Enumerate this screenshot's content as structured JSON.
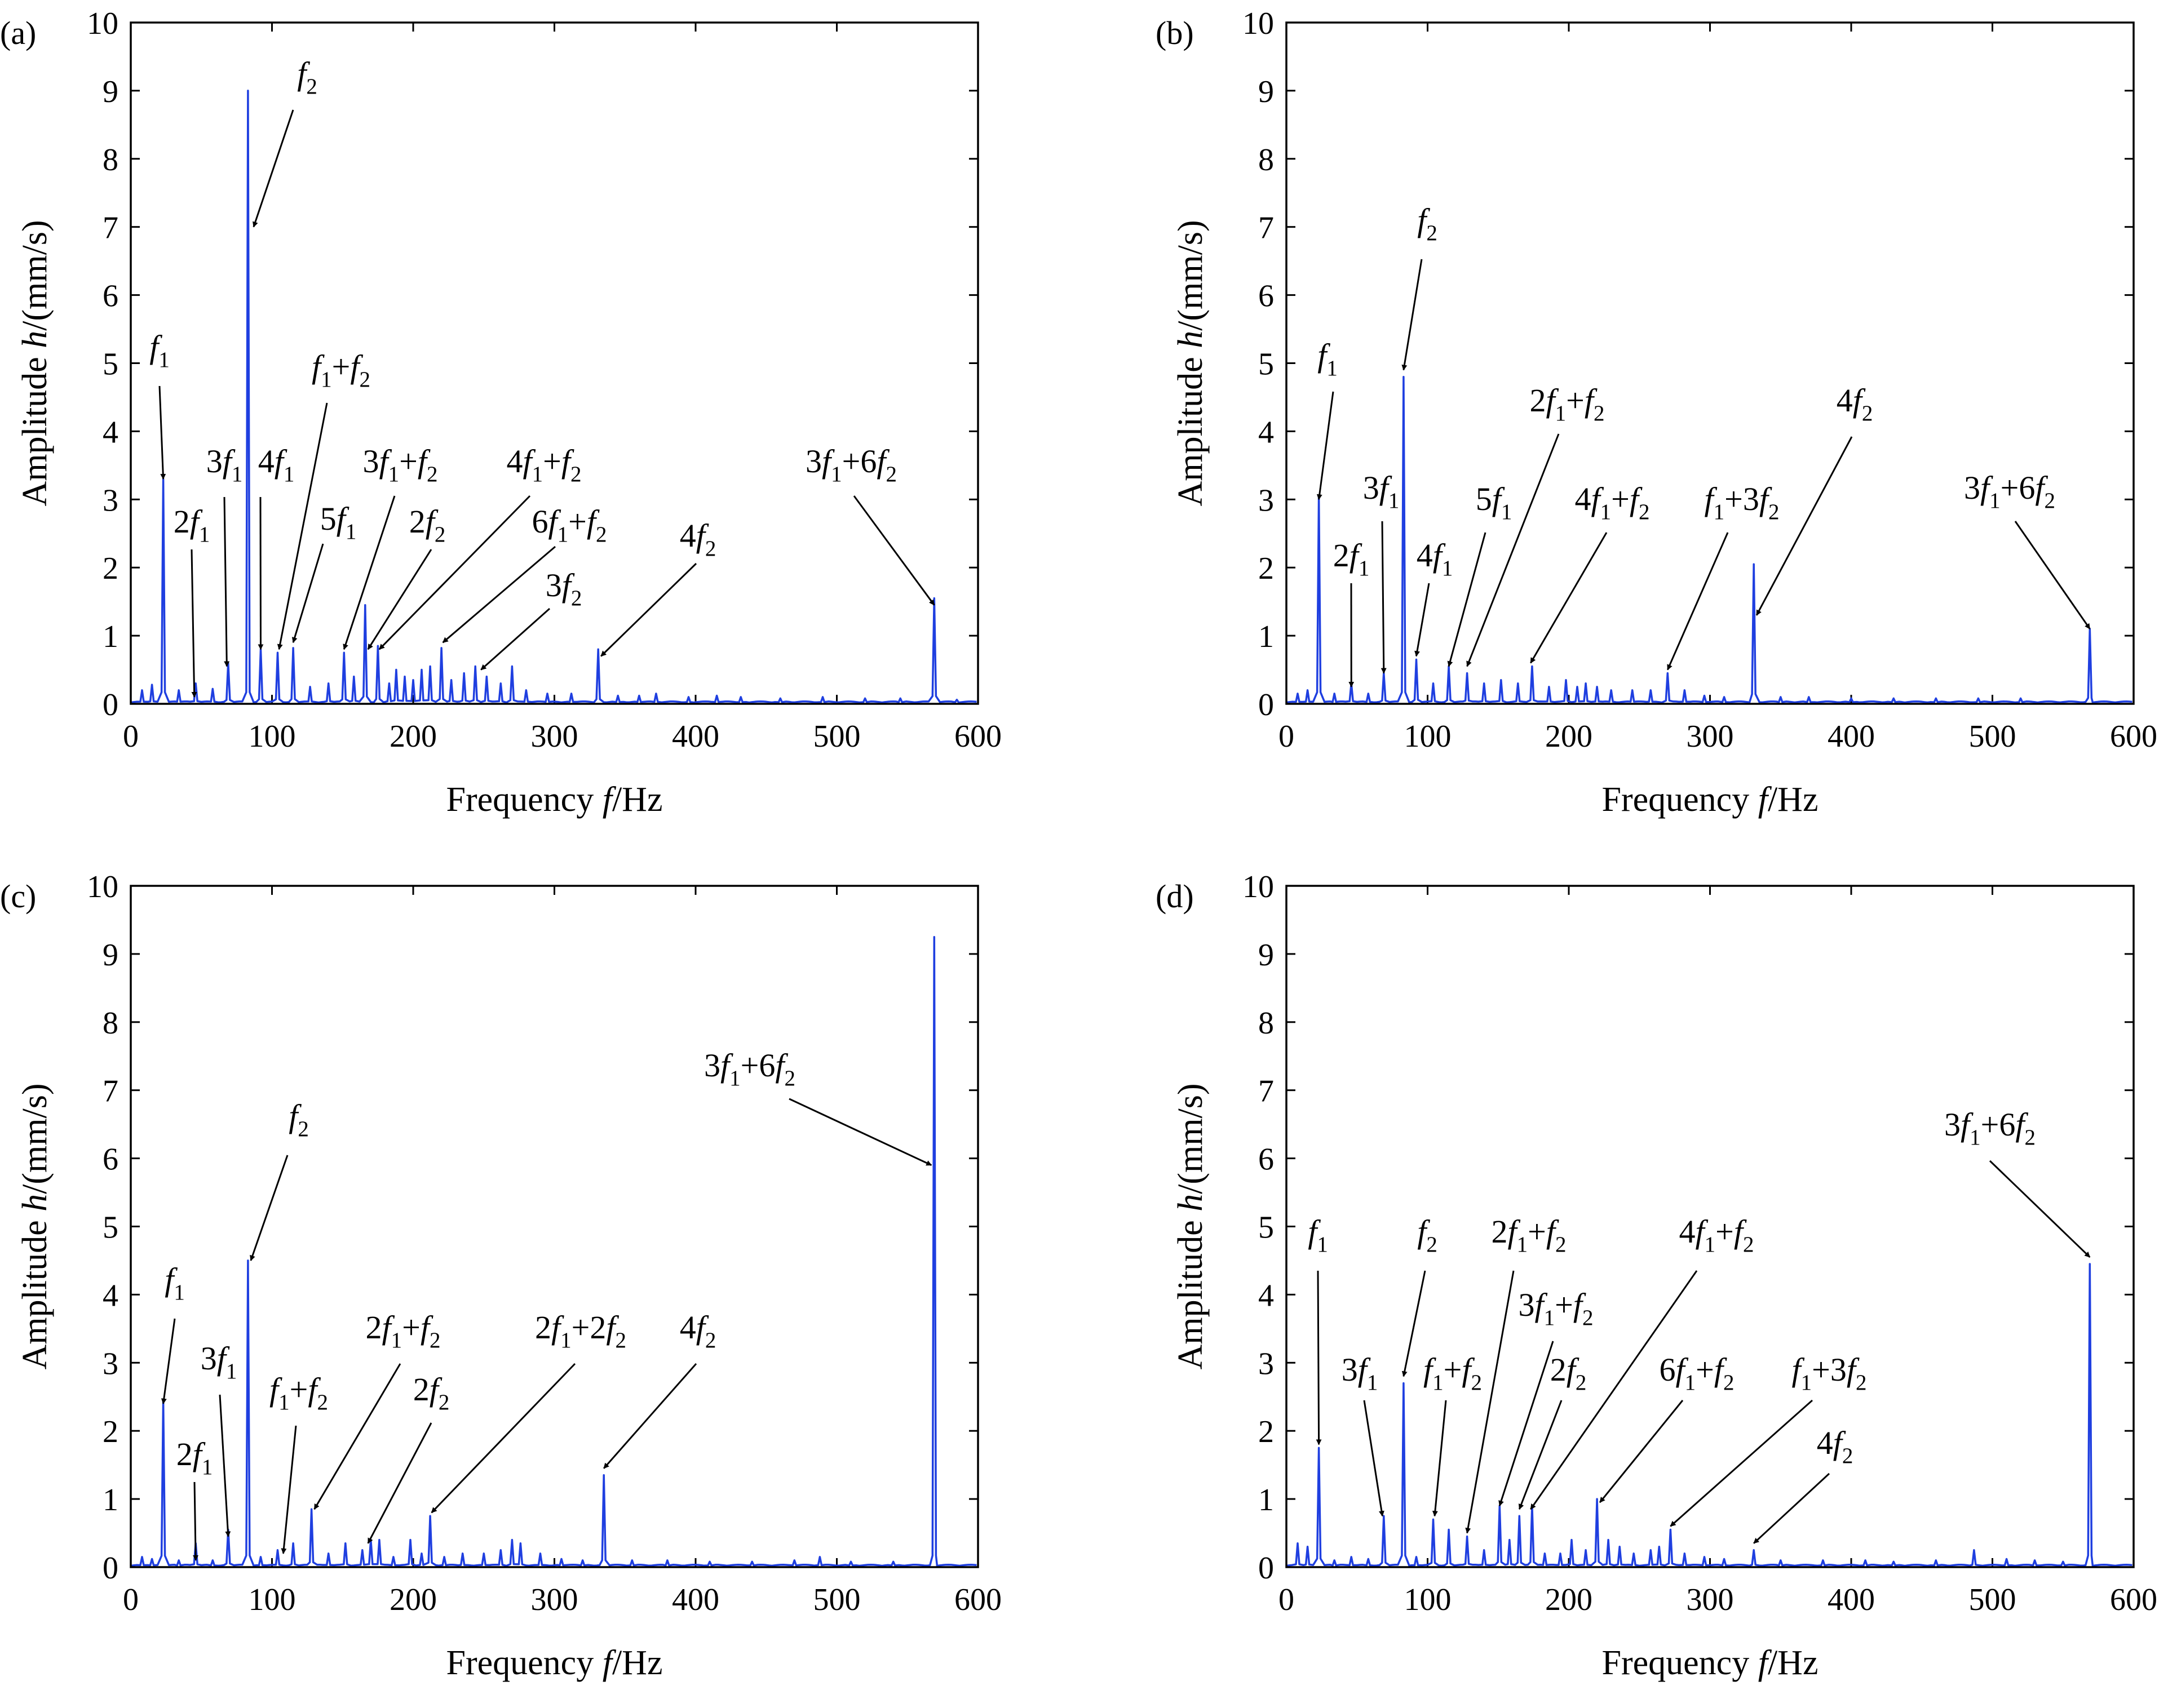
{
  "figure": {
    "panels": [
      {
        "id": "a",
        "tag": "(a)",
        "ylabel": "Amplitude h/(mm/s)",
        "xlabel": "Frequency f/Hz",
        "xlim": [
          0,
          600
        ],
        "ylim": [
          0,
          10
        ],
        "xticks": [
          0,
          100,
          200,
          300,
          400,
          500,
          600
        ],
        "yticks": [
          0,
          1,
          2,
          3,
          4,
          5,
          6,
          7,
          8,
          9,
          10
        ]
      },
      {
        "id": "b",
        "tag": "(b)",
        "ylabel": "Amplitude h/(mm/s)",
        "xlabel": "Frequency f/Hz",
        "xlim": [
          0,
          600
        ],
        "ylim": [
          0,
          10
        ],
        "xticks": [
          0,
          100,
          200,
          300,
          400,
          500,
          600
        ],
        "yticks": [
          0,
          1,
          2,
          3,
          4,
          5,
          6,
          7,
          8,
          9,
          10
        ]
      },
      {
        "id": "c",
        "tag": "(c)",
        "ylabel": "Amplitude h/(mm/s)",
        "xlabel": "Frequency f/Hz",
        "xlim": [
          0,
          600
        ],
        "ylim": [
          0,
          10
        ],
        "xticks": [
          0,
          100,
          200,
          300,
          400,
          500,
          600
        ],
        "yticks": [
          0,
          1,
          2,
          3,
          4,
          5,
          6,
          7,
          8,
          9,
          10
        ]
      },
      {
        "id": "d",
        "tag": "(d)",
        "ylabel": "Amplitude h/(mm/s)",
        "xlabel": "Frequency f/Hz",
        "xlim": [
          0,
          600
        ],
        "ylim": [
          0,
          10
        ],
        "xticks": [
          0,
          100,
          200,
          300,
          400,
          500,
          600
        ],
        "yticks": [
          0,
          1,
          2,
          3,
          4,
          5,
          6,
          7,
          8,
          9,
          10
        ]
      }
    ]
  },
  "colors": {
    "spectrum": "#1f3fe0",
    "axis": "#000000"
  },
  "chart_data": [
    {
      "panel": "a",
      "type": "line",
      "peaks": [
        [
          8,
          0.2
        ],
        [
          15,
          0.28
        ],
        [
          23,
          3.3
        ],
        [
          34,
          0.2
        ],
        [
          46,
          0.3
        ],
        [
          58,
          0.22
        ],
        [
          69,
          0.6
        ],
        [
          83,
          9.0
        ],
        [
          92,
          0.8
        ],
        [
          104,
          0.75
        ],
        [
          115,
          0.82
        ],
        [
          127,
          0.25
        ],
        [
          140,
          0.3
        ],
        [
          151,
          0.75
        ],
        [
          158,
          0.4
        ],
        [
          166,
          1.45
        ],
        [
          175,
          0.85
        ],
        [
          183,
          0.3
        ],
        [
          188,
          0.5
        ],
        [
          194,
          0.4
        ],
        [
          200,
          0.35
        ],
        [
          206,
          0.5
        ],
        [
          212,
          0.55
        ],
        [
          220,
          0.82
        ],
        [
          227,
          0.35
        ],
        [
          236,
          0.45
        ],
        [
          244,
          0.55
        ],
        [
          252,
          0.4
        ],
        [
          262,
          0.3
        ],
        [
          270,
          0.55
        ],
        [
          280,
          0.2
        ],
        [
          295,
          0.15
        ],
        [
          312,
          0.15
        ],
        [
          331,
          0.8
        ],
        [
          345,
          0.12
        ],
        [
          360,
          0.12
        ],
        [
          372,
          0.15
        ],
        [
          395,
          0.1
        ],
        [
          415,
          0.12
        ],
        [
          432,
          0.1
        ],
        [
          460,
          0.08
        ],
        [
          490,
          0.1
        ],
        [
          520,
          0.08
        ],
        [
          545,
          0.08
        ],
        [
          569,
          1.55
        ],
        [
          585,
          0.06
        ]
      ],
      "annotations": [
        {
          "text": "f1",
          "tip": [
            23,
            3.3
          ]
        },
        {
          "text": "2f1",
          "tip": [
            45,
            0.1
          ]
        },
        {
          "text": "3f1",
          "tip": [
            68,
            0.55
          ]
        },
        {
          "text": "f2",
          "tip": [
            87,
            7.0
          ]
        },
        {
          "text": "4f1",
          "tip": [
            92,
            0.8
          ]
        },
        {
          "text": "f1+f2",
          "tip": [
            105,
            0.8
          ]
        },
        {
          "text": "5f1",
          "tip": [
            115,
            0.9
          ]
        },
        {
          "text": "3f1+f2",
          "tip": [
            151,
            0.8
          ]
        },
        {
          "text": "2f2",
          "tip": [
            168,
            0.8
          ]
        },
        {
          "text": "4f1+f2",
          "tip": [
            176,
            0.8
          ]
        },
        {
          "text": "6f1+f2",
          "tip": [
            221,
            0.9
          ]
        },
        {
          "text": "3f2",
          "tip": [
            248,
            0.5
          ]
        },
        {
          "text": "4f2",
          "tip": [
            333,
            0.7
          ]
        },
        {
          "text": "3f1+6f2",
          "tip": [
            569,
            1.45
          ]
        }
      ]
    },
    {
      "panel": "b",
      "type": "line",
      "peaks": [
        [
          8,
          0.15
        ],
        [
          15,
          0.2
        ],
        [
          23,
          3.05
        ],
        [
          34,
          0.15
        ],
        [
          46,
          0.3
        ],
        [
          58,
          0.15
        ],
        [
          69,
          0.45
        ],
        [
          83,
          4.8
        ],
        [
          92,
          0.65
        ],
        [
          104,
          0.3
        ],
        [
          115,
          0.55
        ],
        [
          128,
          0.45
        ],
        [
          140,
          0.3
        ],
        [
          152,
          0.35
        ],
        [
          164,
          0.3
        ],
        [
          174,
          0.55
        ],
        [
          186,
          0.25
        ],
        [
          198,
          0.35
        ],
        [
          206,
          0.25
        ],
        [
          212,
          0.3
        ],
        [
          220,
          0.25
        ],
        [
          230,
          0.2
        ],
        [
          245,
          0.2
        ],
        [
          258,
          0.2
        ],
        [
          270,
          0.45
        ],
        [
          282,
          0.2
        ],
        [
          296,
          0.12
        ],
        [
          310,
          0.1
        ],
        [
          331,
          2.05
        ],
        [
          350,
          0.1
        ],
        [
          370,
          0.1
        ],
        [
          400,
          0.08
        ],
        [
          430,
          0.08
        ],
        [
          460,
          0.08
        ],
        [
          490,
          0.08
        ],
        [
          520,
          0.08
        ],
        [
          569,
          1.1
        ]
      ],
      "annotations": [
        {
          "text": "f1",
          "tip": [
            23,
            3.0
          ]
        },
        {
          "text": "2f1",
          "tip": [
            46,
            0.25
          ]
        },
        {
          "text": "3f1",
          "tip": [
            69,
            0.45
          ]
        },
        {
          "text": "f2",
          "tip": [
            83,
            4.9
          ]
        },
        {
          "text": "4f1",
          "tip": [
            92,
            0.7
          ]
        },
        {
          "text": "5f1",
          "tip": [
            115,
            0.55
          ]
        },
        {
          "text": "2f1+f2",
          "tip": [
            128,
            0.55
          ]
        },
        {
          "text": "4f1+f2",
          "tip": [
            173,
            0.6
          ]
        },
        {
          "text": "f1+3f2",
          "tip": [
            270,
            0.5
          ]
        },
        {
          "text": "4f2",
          "tip": [
            333,
            1.3
          ]
        },
        {
          "text": "3f1+6f2",
          "tip": [
            569,
            1.1
          ]
        }
      ]
    },
    {
      "panel": "c",
      "type": "line",
      "peaks": [
        [
          8,
          0.15
        ],
        [
          15,
          0.12
        ],
        [
          23,
          2.45
        ],
        [
          34,
          0.1
        ],
        [
          46,
          0.35
        ],
        [
          58,
          0.1
        ],
        [
          69,
          0.55
        ],
        [
          83,
          4.5
        ],
        [
          92,
          0.15
        ],
        [
          104,
          0.25
        ],
        [
          115,
          0.35
        ],
        [
          128,
          0.85
        ],
        [
          140,
          0.2
        ],
        [
          152,
          0.35
        ],
        [
          164,
          0.25
        ],
        [
          170,
          0.4
        ],
        [
          176,
          0.4
        ],
        [
          186,
          0.15
        ],
        [
          198,
          0.4
        ],
        [
          206,
          0.2
        ],
        [
          212,
          0.75
        ],
        [
          222,
          0.15
        ],
        [
          235,
          0.2
        ],
        [
          250,
          0.2
        ],
        [
          262,
          0.25
        ],
        [
          270,
          0.4
        ],
        [
          276,
          0.35
        ],
        [
          290,
          0.2
        ],
        [
          305,
          0.12
        ],
        [
          320,
          0.1
        ],
        [
          335,
          1.35
        ],
        [
          355,
          0.1
        ],
        [
          380,
          0.1
        ],
        [
          410,
          0.08
        ],
        [
          440,
          0.08
        ],
        [
          470,
          0.1
        ],
        [
          488,
          0.15
        ],
        [
          510,
          0.08
        ],
        [
          540,
          0.08
        ],
        [
          569,
          9.25
        ]
      ],
      "annotations": [
        {
          "text": "f1",
          "tip": [
            23,
            2.4
          ]
        },
        {
          "text": "2f1",
          "tip": [
            46,
            0.1
          ]
        },
        {
          "text": "3f1",
          "tip": [
            69,
            0.45
          ]
        },
        {
          "text": "f2",
          "tip": [
            85,
            4.5
          ]
        },
        {
          "text": "f1+f2",
          "tip": [
            108,
            0.2
          ]
        },
        {
          "text": "2f1+f2",
          "tip": [
            130,
            0.85
          ]
        },
        {
          "text": "2f2",
          "tip": [
            168,
            0.35
          ]
        },
        {
          "text": "2f1+2f2",
          "tip": [
            213,
            0.8
          ]
        },
        {
          "text": "4f2",
          "tip": [
            335,
            1.45
          ]
        },
        {
          "text": "3f1+6f2",
          "tip": [
            567,
            5.9
          ]
        }
      ]
    },
    {
      "panel": "d",
      "type": "line",
      "peaks": [
        [
          8,
          0.35
        ],
        [
          15,
          0.3
        ],
        [
          23,
          1.75
        ],
        [
          34,
          0.1
        ],
        [
          46,
          0.15
        ],
        [
          58,
          0.12
        ],
        [
          69,
          0.75
        ],
        [
          83,
          2.7
        ],
        [
          92,
          0.15
        ],
        [
          104,
          0.7
        ],
        [
          115,
          0.55
        ],
        [
          128,
          0.45
        ],
        [
          140,
          0.25
        ],
        [
          151,
          0.9
        ],
        [
          158,
          0.4
        ],
        [
          165,
          0.75
        ],
        [
          174,
          0.9
        ],
        [
          183,
          0.2
        ],
        [
          194,
          0.2
        ],
        [
          202,
          0.4
        ],
        [
          212,
          0.25
        ],
        [
          220,
          1.0
        ],
        [
          228,
          0.4
        ],
        [
          236,
          0.3
        ],
        [
          246,
          0.2
        ],
        [
          258,
          0.25
        ],
        [
          264,
          0.3
        ],
        [
          272,
          0.55
        ],
        [
          282,
          0.2
        ],
        [
          296,
          0.15
        ],
        [
          310,
          0.12
        ],
        [
          331,
          0.25
        ],
        [
          350,
          0.1
        ],
        [
          380,
          0.1
        ],
        [
          410,
          0.1
        ],
        [
          430,
          0.08
        ],
        [
          460,
          0.1
        ],
        [
          487,
          0.25
        ],
        [
          510,
          0.12
        ],
        [
          530,
          0.1
        ],
        [
          550,
          0.08
        ],
        [
          569,
          4.45
        ]
      ],
      "annotations": [
        {
          "text": "f1",
          "tip": [
            23,
            1.8
          ]
        },
        {
          "text": "3f1",
          "tip": [
            68,
            0.75
          ]
        },
        {
          "text": "f2",
          "tip": [
            83,
            2.8
          ]
        },
        {
          "text": "f1+f2",
          "tip": [
            105,
            0.75
          ]
        },
        {
          "text": "2f1+f2",
          "tip": [
            128,
            0.5
          ]
        },
        {
          "text": "3f1+f2",
          "tip": [
            151,
            0.9
          ]
        },
        {
          "text": "2f2",
          "tip": [
            165,
            0.85
          ]
        },
        {
          "text": "4f1+f2",
          "tip": [
            173,
            0.85
          ]
        },
        {
          "text": "6f1+f2",
          "tip": [
            222,
            0.95
          ]
        },
        {
          "text": "f1+3f2",
          "tip": [
            272,
            0.6
          ]
        },
        {
          "text": "4f2",
          "tip": [
            331,
            0.35
          ]
        },
        {
          "text": "3f1+6f2",
          "tip": [
            569,
            4.55
          ]
        }
      ]
    }
  ]
}
